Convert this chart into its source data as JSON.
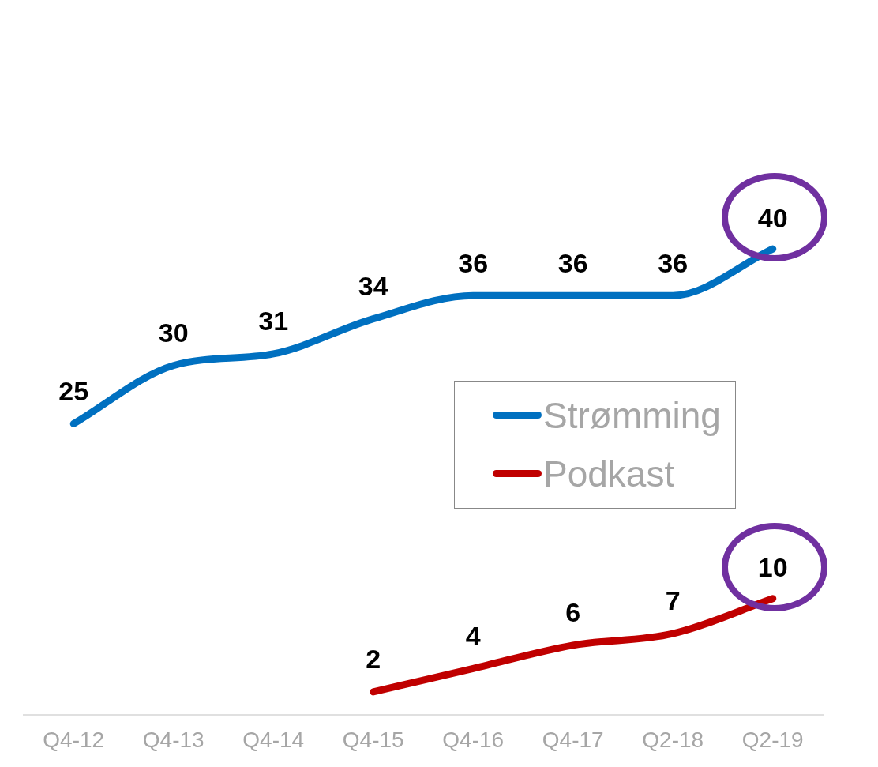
{
  "chart_data": {
    "type": "line",
    "categories": [
      "Q4-12",
      "Q4-13",
      "Q4-14",
      "Q4-15",
      "Q4-16",
      "Q4-17",
      "Q2-18",
      "Q2-19"
    ],
    "series": [
      {
        "name": "Strømming",
        "color": "#0070c0",
        "values": [
          25,
          30,
          31,
          34,
          36,
          36,
          36,
          40
        ]
      },
      {
        "name": "Podkast",
        "color": "#c00000",
        "values": [
          null,
          null,
          null,
          2,
          4,
          6,
          7,
          10
        ]
      }
    ],
    "data_labels": true,
    "legend": "center right",
    "grid": false,
    "marker": "none",
    "line_style": "solid",
    "tick_labels": "x"
  }
}
